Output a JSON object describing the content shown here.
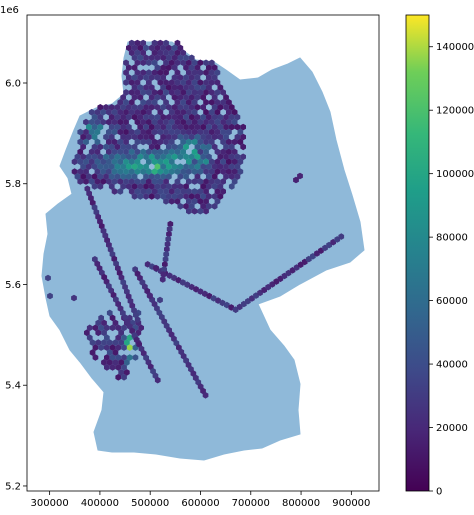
{
  "chart_data": [
    {
      "type": "heatmap",
      "subtype": "hexbin-on-map",
      "title": "",
      "xlabel": "",
      "ylabel": "",
      "xlim": [
        255000,
        955000
      ],
      "ylim": [
        5190000,
        6135000
      ],
      "y_offset_text": "1e6",
      "x_ticks": [
        {
          "value": 300000,
          "label": "300000"
        },
        {
          "value": 400000,
          "label": "400000"
        },
        {
          "value": 500000,
          "label": "500000"
        },
        {
          "value": 600000,
          "label": "600000"
        },
        {
          "value": 700000,
          "label": "700000"
        },
        {
          "value": 800000,
          "label": "800000"
        },
        {
          "value": 900000,
          "label": "900000"
        }
      ],
      "y_ticks": [
        {
          "value": 5200000,
          "label": "5.2"
        },
        {
          "value": 5400000,
          "label": "5.4"
        },
        {
          "value": 5600000,
          "label": "5.6"
        },
        {
          "value": 5800000,
          "label": "5.8"
        },
        {
          "value": 6000000,
          "label": "6.0"
        }
      ],
      "grid": false,
      "background_map": {
        "region": "Germany",
        "color": "#8fb9d9"
      },
      "dense_regions": [
        {
          "x": [
            380000,
            560000
          ],
          "y": [
            5800000,
            5900000
          ],
          "level": 120000
        },
        {
          "x": [
            450000,
            565000
          ],
          "y": [
            5850000,
            5880000
          ],
          "level": 140000
        },
        {
          "x": [
            350000,
            420000
          ],
          "y": [
            5800000,
            5830000
          ],
          "level": 90000
        },
        {
          "x": [
            440000,
            470000
          ],
          "y": [
            5480000,
            5540000
          ],
          "level": 130000
        }
      ],
      "tracks": [
        {
          "from": [
            375000,
            5790000
          ],
          "to": [
            475000,
            5530000
          ]
        },
        {
          "from": [
            390000,
            5650000
          ],
          "to": [
            515000,
            5410000
          ]
        },
        {
          "from": [
            470000,
            5630000
          ],
          "to": [
            610000,
            5380000
          ]
        },
        {
          "from": [
            495000,
            5640000
          ],
          "to": [
            670000,
            5550000
          ]
        },
        {
          "from": [
            670000,
            5550000
          ],
          "to": [
            880000,
            5695000
          ]
        },
        {
          "from": [
            540000,
            5720000
          ],
          "to": [
            525000,
            5610000
          ]
        }
      ]
    },
    {
      "type": "colorbar",
      "colormap": "viridis",
      "vmin": 0,
      "vmax": 150000,
      "ticks": [
        "0",
        "20000",
        "40000",
        "60000",
        "80000",
        "100000",
        "120000",
        "140000"
      ]
    }
  ]
}
